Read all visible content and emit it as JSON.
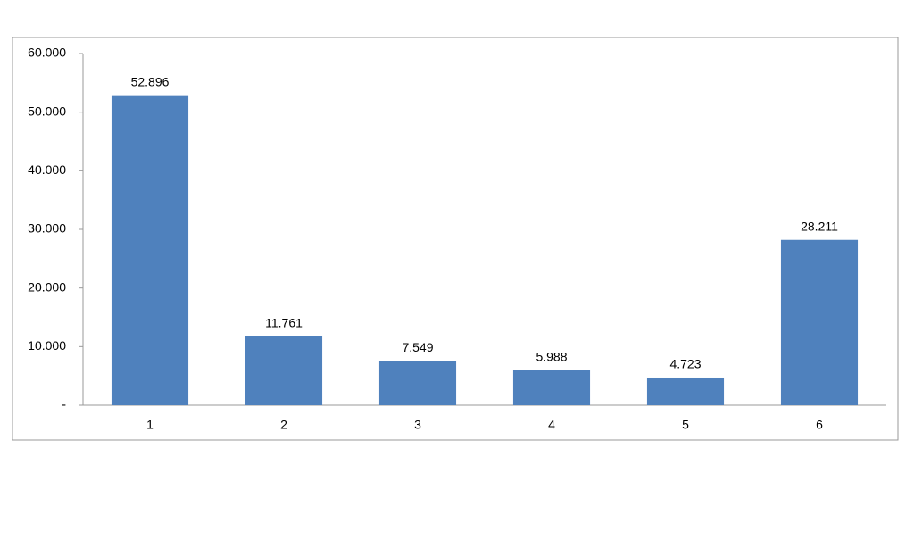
{
  "chart_data": {
    "type": "bar",
    "categories": [
      "1",
      "2",
      "3",
      "4",
      "5",
      "6"
    ],
    "values": [
      52896,
      11761,
      7549,
      5988,
      4723,
      28211
    ],
    "value_labels": [
      "52.896",
      "11.761",
      "7.549",
      "5.988",
      "4.723",
      "28.211"
    ],
    "color": "#4f81bd",
    "ylim": [
      0,
      60000
    ],
    "yticks": [
      {
        "value": 0,
        "label": "-"
      },
      {
        "value": 10000,
        "label": "10.000"
      },
      {
        "value": 20000,
        "label": "20.000"
      },
      {
        "value": 30000,
        "label": "30.000"
      },
      {
        "value": 40000,
        "label": "40.000"
      },
      {
        "value": 50000,
        "label": "50.000"
      },
      {
        "value": 60000,
        "label": "60.000"
      }
    ],
    "grid": false
  }
}
